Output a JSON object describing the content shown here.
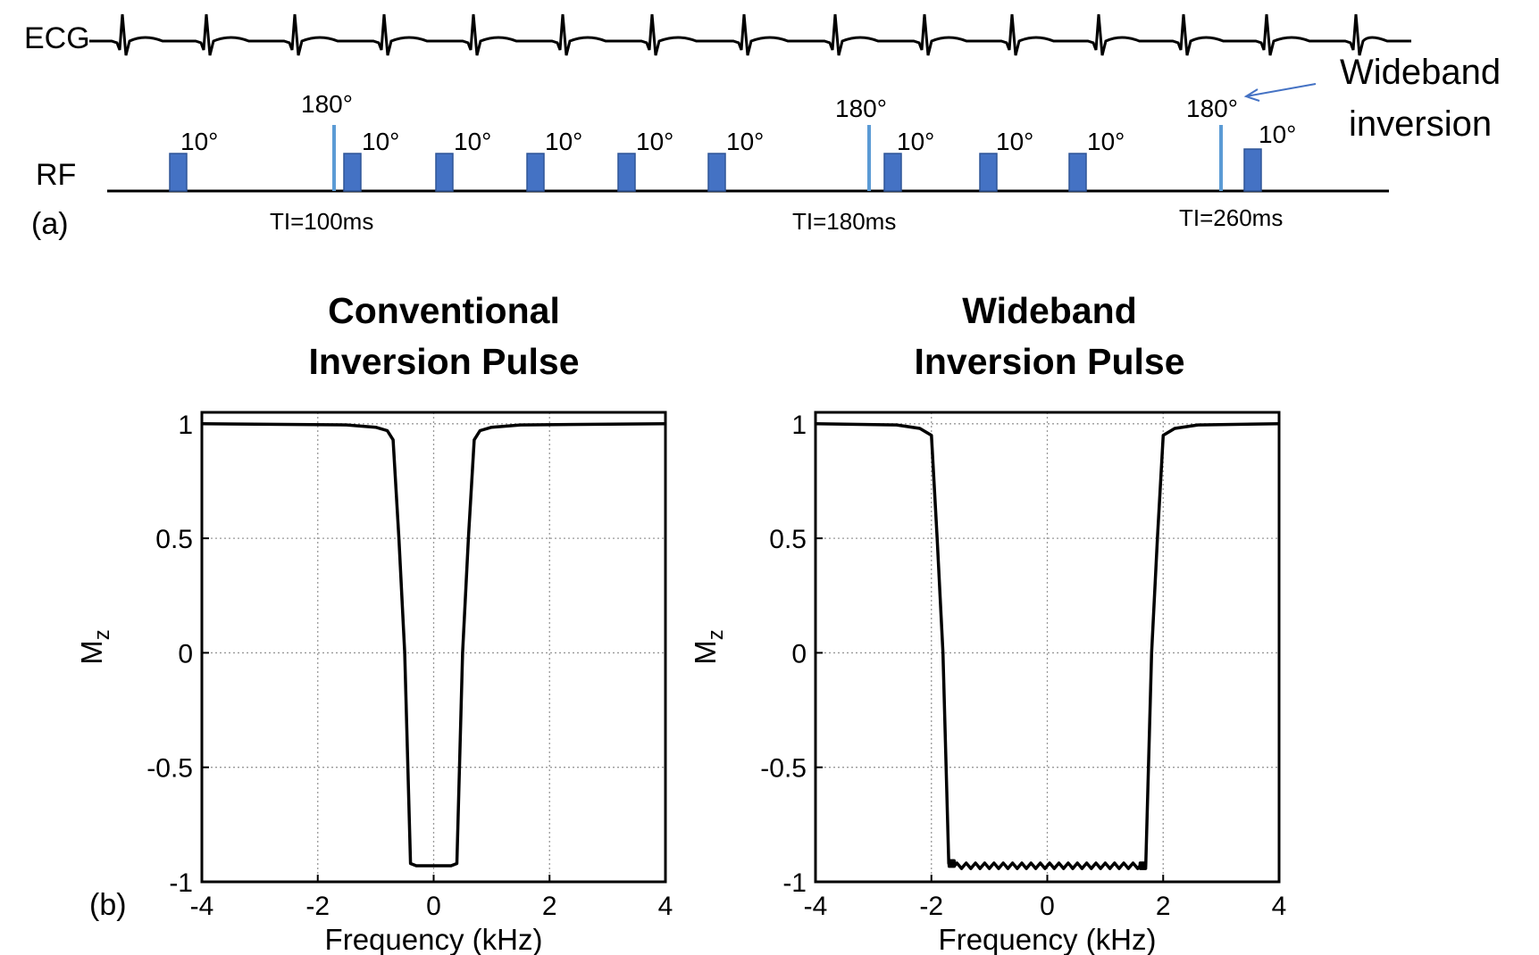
{
  "panel_a": {
    "label": "(a)",
    "ecg_label": "ECG",
    "rf_label": "RF",
    "annotation": {
      "line1": "Wideband",
      "line2": "inversion"
    },
    "flip_small": "10°",
    "flip_inversion": "180°",
    "ti_labels": [
      "TI=100ms",
      "TI=180ms",
      "TI=260ms"
    ],
    "colors": {
      "pulse": "#4472C4",
      "pulse_edge": "#2F5597",
      "inversion": "#5B9BD5",
      "arrow": "#4472C4"
    }
  },
  "panel_b": {
    "label": "(b)"
  },
  "chart_data": [
    {
      "type": "line",
      "title": [
        "Conventional",
        "Inversion Pulse"
      ],
      "xlabel": "Frequency (kHz)",
      "ylabel": "Mz",
      "xlim": [
        -4,
        4
      ],
      "ylim": [
        -1,
        1.05
      ],
      "xticks": [
        -4,
        -2,
        0,
        2,
        4
      ],
      "yticks": [
        -1,
        -0.5,
        0,
        0.5,
        1
      ],
      "ytick_labels": [
        "-1",
        "-0.5",
        "0",
        "0.5",
        "1"
      ],
      "grid": true,
      "series": [
        {
          "name": "Mz",
          "x": [
            -4,
            -1.5,
            -1.0,
            -0.8,
            -0.7,
            -0.6,
            -0.5,
            -0.4,
            -0.3,
            0,
            0.3,
            0.4,
            0.5,
            0.6,
            0.7,
            0.8,
            1.0,
            1.5,
            4
          ],
          "y": [
            1,
            0.995,
            0.985,
            0.97,
            0.93,
            0.5,
            0,
            -0.92,
            -0.93,
            -0.93,
            -0.93,
            -0.92,
            0,
            0.5,
            0.93,
            0.97,
            0.985,
            0.995,
            1
          ]
        }
      ]
    },
    {
      "type": "line",
      "title": [
        "Wideband",
        "Inversion Pulse"
      ],
      "xlabel": "Frequency (kHz)",
      "ylabel": "Mz",
      "xlim": [
        -4,
        4
      ],
      "ylim": [
        -1,
        1.05
      ],
      "xticks": [
        -4,
        -2,
        0,
        2,
        4
      ],
      "yticks": [
        -1,
        -0.5,
        0,
        0.5,
        1
      ],
      "ytick_labels": [
        "-1",
        "-0.5",
        "0",
        "0.5",
        "1"
      ],
      "grid": true,
      "series": [
        {
          "name": "Mz",
          "x": [
            -4,
            -2.6,
            -2.2,
            -2.0,
            -1.9,
            -1.8,
            -1.7,
            -1.6,
            0,
            1.6,
            1.7,
            1.8,
            1.9,
            2.0,
            2.2,
            2.6,
            4
          ],
          "y": [
            1,
            0.995,
            0.98,
            0.95,
            0.5,
            0,
            -0.92,
            -0.93,
            -0.93,
            -0.93,
            -0.92,
            0,
            0.5,
            0.95,
            0.98,
            0.995,
            1
          ]
        }
      ]
    }
  ]
}
